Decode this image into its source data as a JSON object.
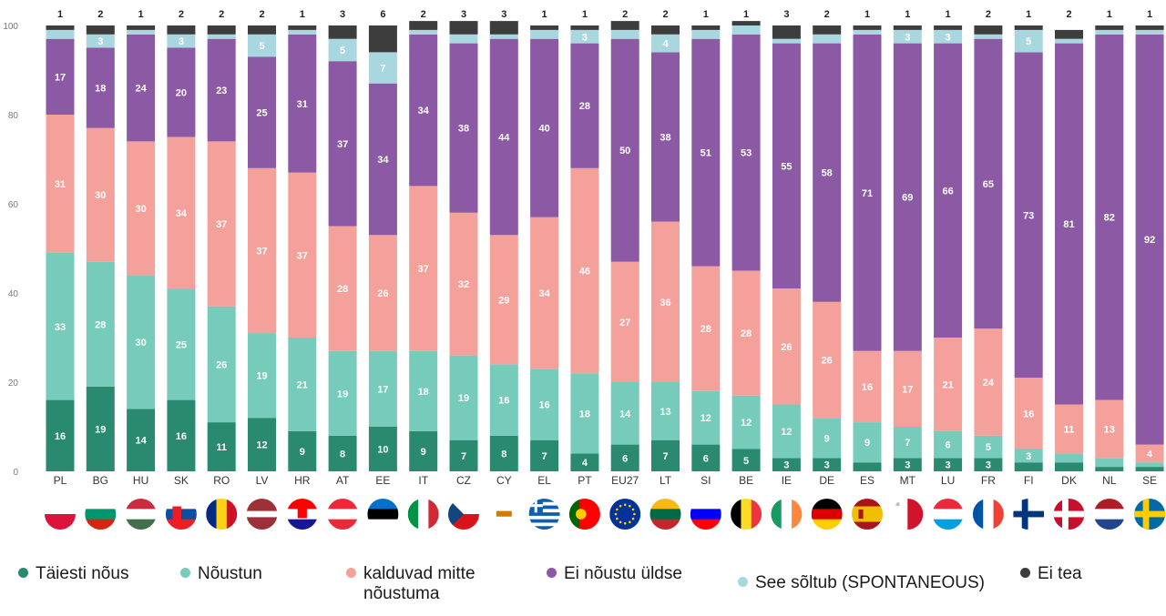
{
  "chart_data": {
    "type": "bar",
    "stacked": true,
    "title": "",
    "xlabel": "",
    "ylabel": "",
    "ylim": [
      0,
      100
    ],
    "y_ticks": [
      0,
      20,
      40,
      60,
      80,
      100
    ],
    "grid": false,
    "legend_position": "bottom",
    "categories": [
      "PL",
      "BG",
      "HU",
      "SK",
      "RO",
      "LV",
      "HR",
      "AT",
      "EE",
      "IT",
      "CZ",
      "CY",
      "EL",
      "PT",
      "EU27",
      "LT",
      "SI",
      "BE",
      "IE",
      "DE",
      "ES",
      "MT",
      "LU",
      "FR",
      "FI",
      "DK",
      "NL",
      "SE"
    ],
    "flags": [
      "pl",
      "bg",
      "hu",
      "sk",
      "ro",
      "lv",
      "hr",
      "at",
      "ee",
      "it",
      "cz",
      "cy",
      "el",
      "pt",
      "eu27",
      "lt",
      "si",
      "be",
      "ie",
      "de",
      "es",
      "mt",
      "lu",
      "fr",
      "fi",
      "dk",
      "nl",
      "se"
    ],
    "series": [
      {
        "name": "Täiesti nõus",
        "color": "#2a8a70",
        "values": [
          16,
          19,
          14,
          16,
          11,
          12,
          9,
          8,
          10,
          9,
          7,
          8,
          7,
          4,
          6,
          7,
          6,
          5,
          3,
          3,
          2,
          3,
          3,
          3,
          2,
          2,
          1,
          1
        ]
      },
      {
        "name": "Nõustun",
        "color": "#76cbbb",
        "values": [
          33,
          28,
          30,
          25,
          26,
          19,
          21,
          19,
          17,
          18,
          19,
          16,
          16,
          18,
          14,
          13,
          12,
          12,
          12,
          9,
          9,
          7,
          6,
          5,
          3,
          2,
          2,
          1
        ]
      },
      {
        "name": "kalduvad mitte nõustuma",
        "color": "#f4a19b",
        "values": [
          31,
          30,
          30,
          34,
          37,
          37,
          37,
          28,
          26,
          37,
          32,
          29,
          34,
          46,
          27,
          36,
          28,
          28,
          26,
          26,
          16,
          17,
          21,
          24,
          16,
          11,
          13,
          4
        ]
      },
      {
        "name": "Ei nõustu üldse",
        "color": "#8c5aa4",
        "values": [
          17,
          18,
          24,
          20,
          23,
          25,
          31,
          37,
          34,
          34,
          38,
          44,
          40,
          28,
          50,
          38,
          51,
          53,
          55,
          58,
          71,
          69,
          66,
          65,
          73,
          81,
          82,
          92
        ]
      },
      {
        "name": "See sõltub (SPONTANEOUS)",
        "color": "#a9d7df",
        "values": [
          2,
          3,
          1,
          3,
          1,
          5,
          1,
          5,
          7,
          1,
          2,
          1,
          2,
          3,
          2,
          4,
          2,
          2,
          1,
          2,
          1,
          3,
          3,
          1,
          5,
          1,
          1,
          1
        ]
      },
      {
        "name": "Ei tea",
        "color": "#3d3d3d",
        "values": [
          1,
          2,
          1,
          2,
          2,
          2,
          1,
          3,
          6,
          2,
          3,
          3,
          1,
          1,
          2,
          2,
          1,
          1,
          3,
          2,
          1,
          1,
          1,
          2,
          1,
          2,
          1,
          1
        ]
      }
    ]
  }
}
